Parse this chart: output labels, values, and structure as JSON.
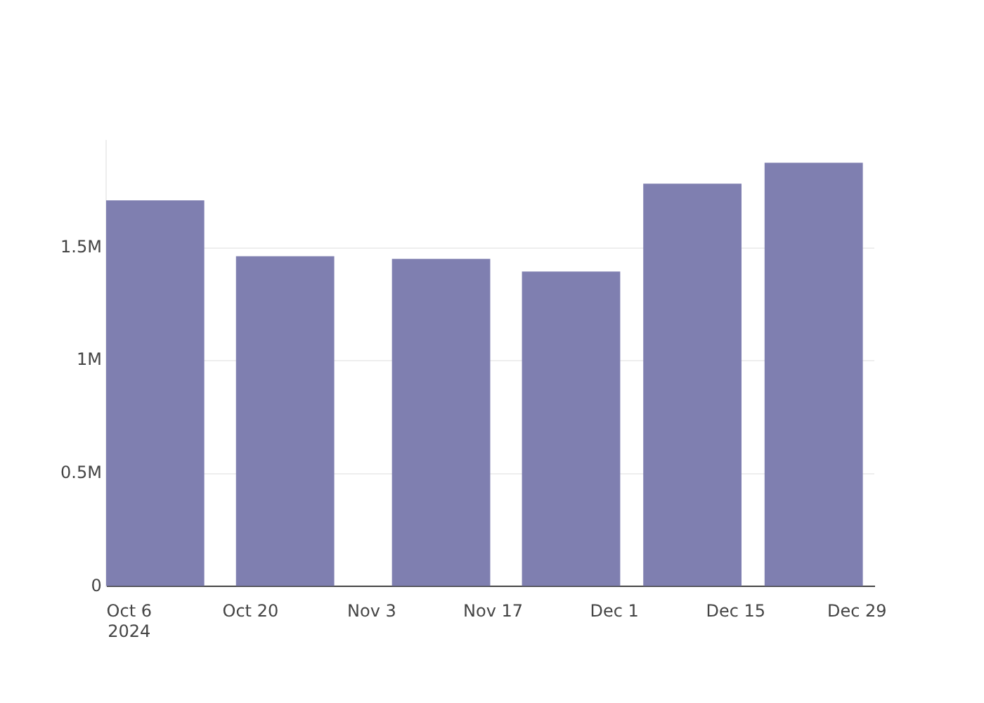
{
  "chart_data": {
    "type": "bar",
    "x": [
      "2024-10-09",
      "2024-10-24",
      "2024-11-11",
      "2024-11-26",
      "2024-12-10",
      "2024-12-24"
    ],
    "values": [
      1710000,
      1463000,
      1451000,
      1395000,
      1784000,
      1877000
    ],
    "color": "#7f7fb0",
    "xlim": [
      "2024-10-03T08:00",
      "2024-12-31"
    ],
    "xticks": [
      {
        "value": "2024-10-06",
        "label": "Oct 6\n2024"
      },
      {
        "value": "2024-10-20",
        "label": "Oct 20"
      },
      {
        "value": "2024-11-03",
        "label": "Nov 3"
      },
      {
        "value": "2024-11-17",
        "label": "Nov 17"
      },
      {
        "value": "2024-12-01",
        "label": "Dec 1"
      },
      {
        "value": "2024-12-15",
        "label": "Dec 15"
      },
      {
        "value": "2024-12-29",
        "label": "Dec 29"
      }
    ],
    "yticks": [
      0,
      {
        "value": 500000,
        "label": "0.5M"
      },
      {
        "value": 1000000,
        "label": "1M"
      },
      {
        "value": 1500000,
        "label": "1.5M"
      }
    ],
    "ylim": [
      0,
      1975000
    ],
    "grid": "y",
    "legend": false
  }
}
